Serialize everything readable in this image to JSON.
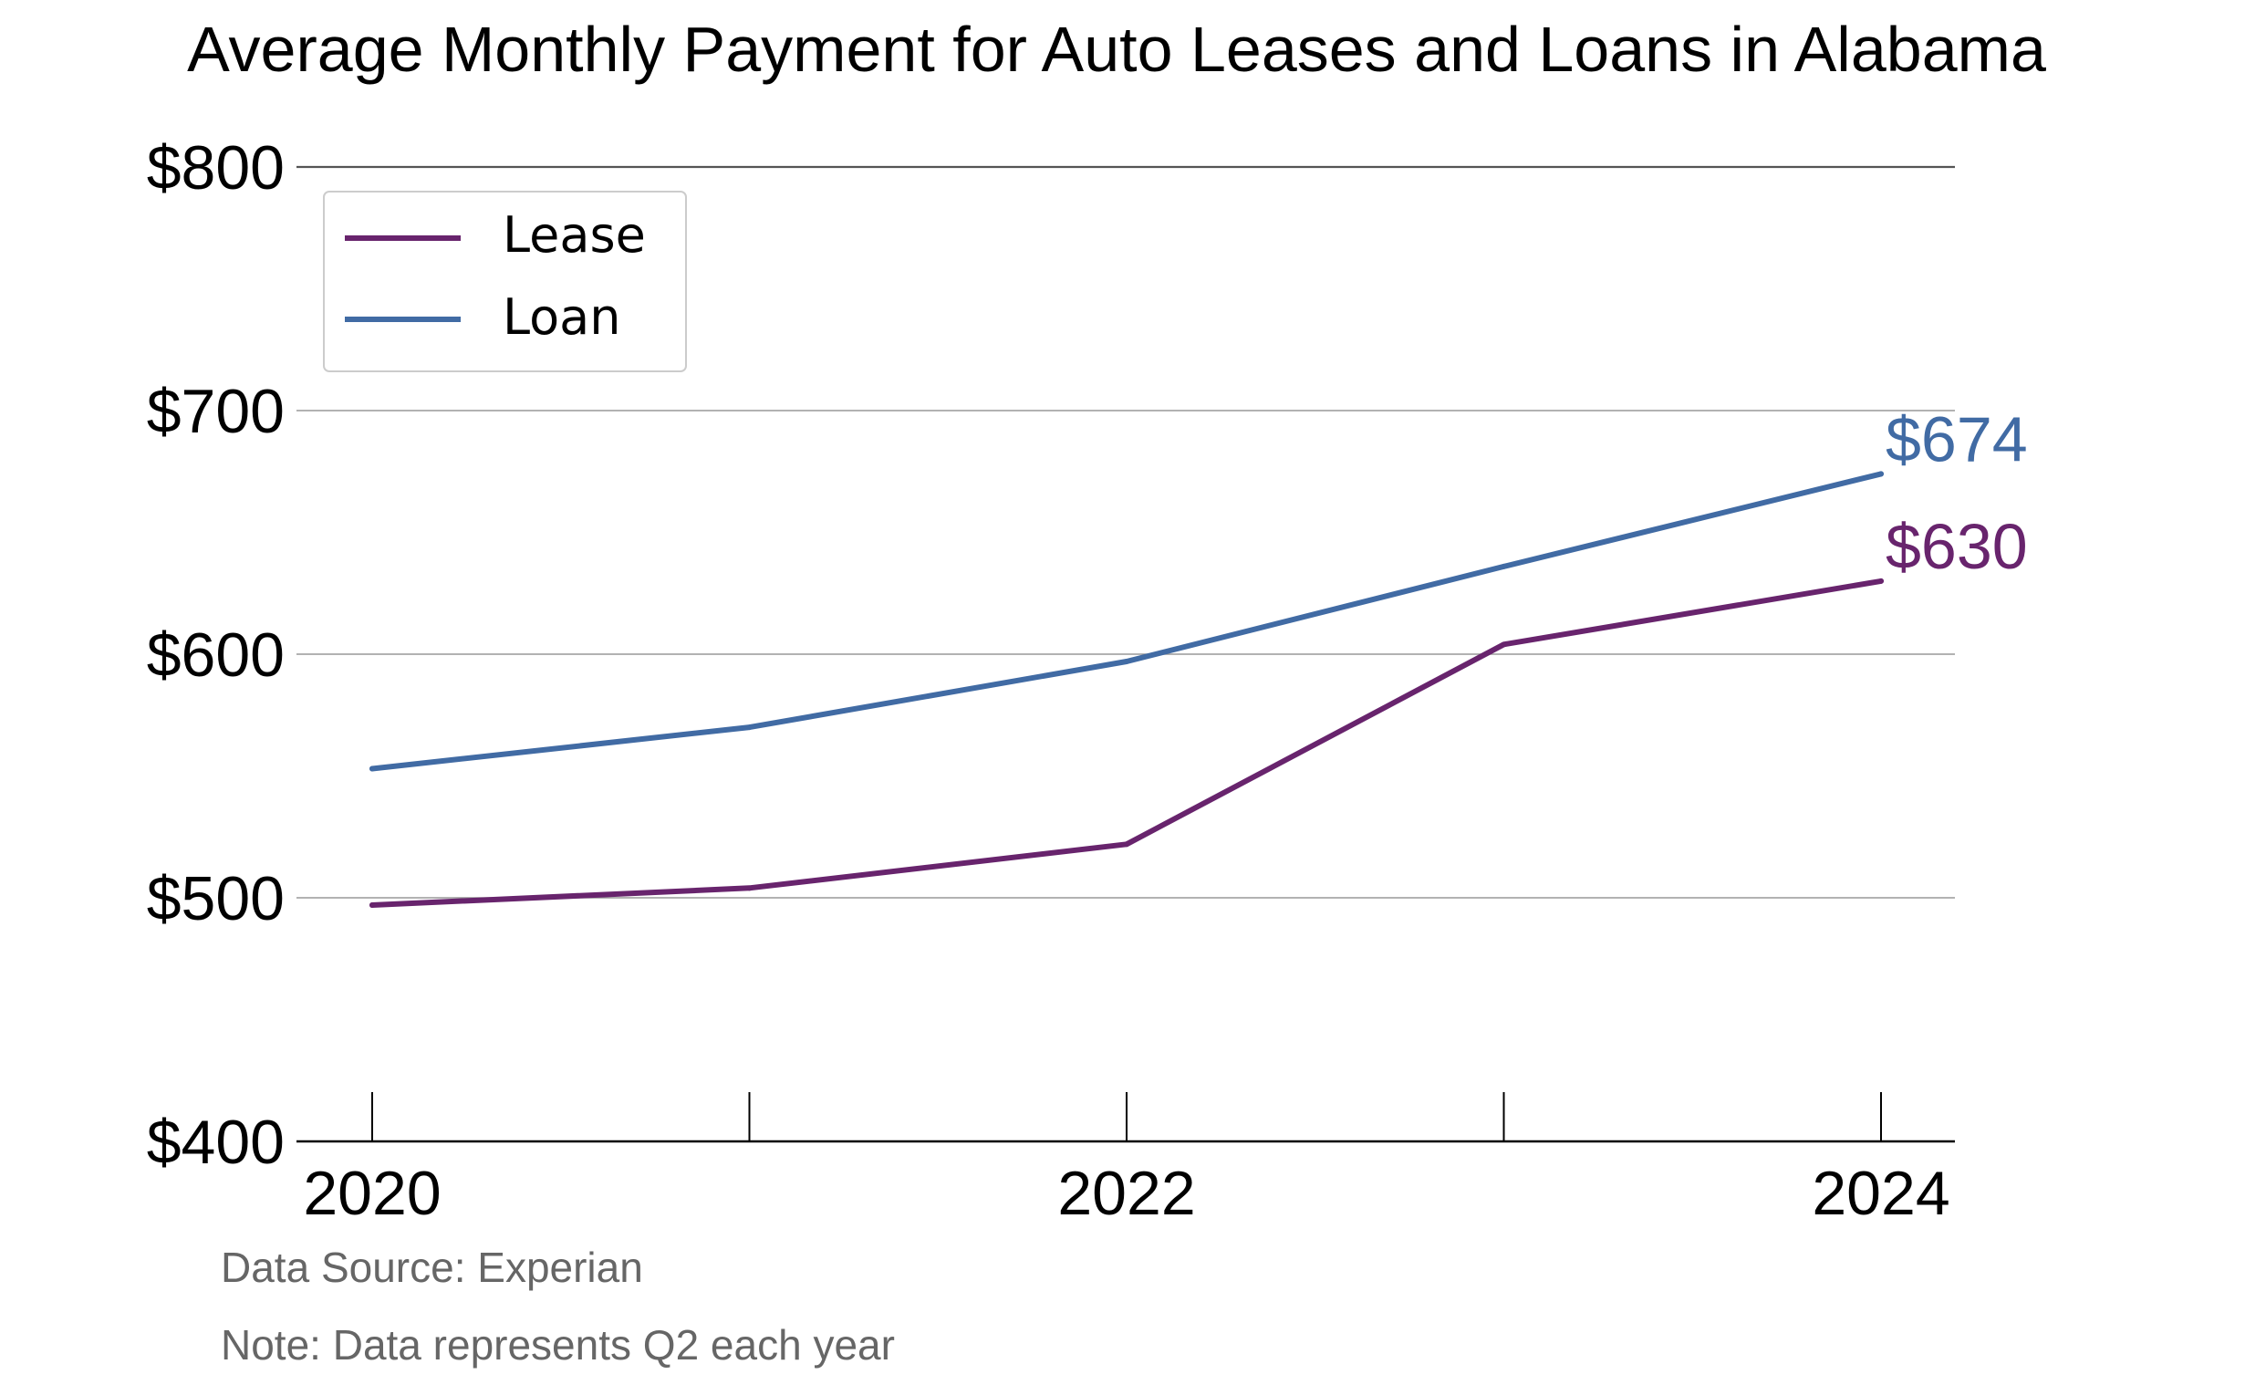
{
  "chart_data": {
    "type": "line",
    "title": "Average Monthly Payment for Auto Leases and Loans in Alabama",
    "x": [
      2020,
      2021,
      2022,
      2023,
      2024
    ],
    "x_tick_labels": [
      "2020",
      "2022",
      "2024"
    ],
    "x_tick_values": [
      2020,
      2022,
      2024
    ],
    "y_tick_labels": [
      "$400",
      "$500",
      "$600",
      "$700",
      "$800"
    ],
    "y_tick_values": [
      400,
      500,
      600,
      700,
      800
    ],
    "ylim": [
      400,
      800
    ],
    "xlim": [
      2019.8,
      2024.2
    ],
    "grid": "horizontal",
    "legend_position": "top-left",
    "series": [
      {
        "name": "Lease",
        "color": "#68246d",
        "values": [
          497,
          504,
          522,
          604,
          630
        ],
        "end_label": "$630"
      },
      {
        "name": "Loan",
        "color": "#416ba4",
        "values": [
          553,
          570,
          597,
          636,
          674
        ],
        "end_label": "$674"
      }
    ],
    "footnotes": [
      "Data Source: Experian",
      "Note: Data represents Q2 each year"
    ]
  }
}
